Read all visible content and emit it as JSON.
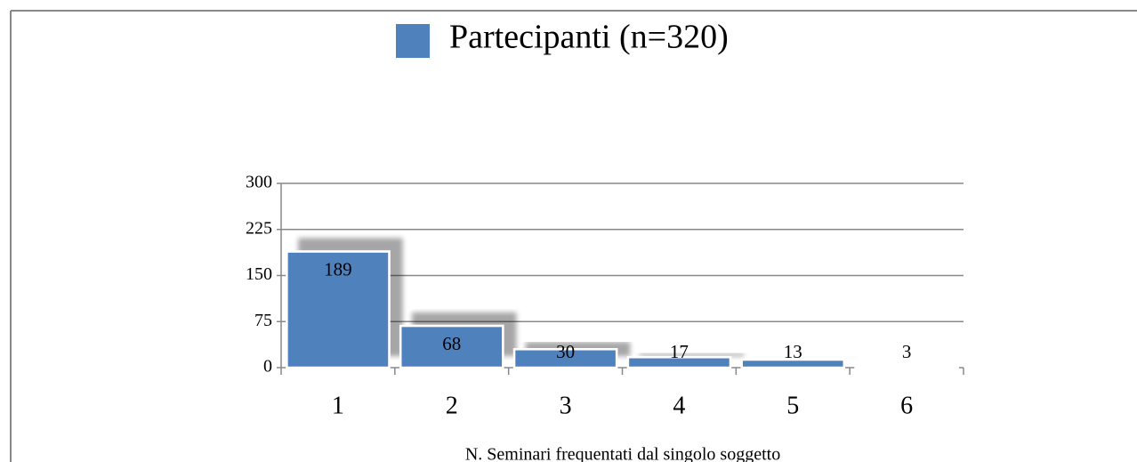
{
  "chart_data": {
    "type": "bar",
    "series": [
      {
        "name": "Partecipanti (n=320)",
        "color": "#4f81bd",
        "values": [
          189,
          68,
          30,
          17,
          13,
          3
        ]
      }
    ],
    "categories": [
      "1",
      "2",
      "3",
      "4",
      "5",
      "6"
    ],
    "xlabel": "N. Seminari frequentati dal singolo soggetto",
    "ylim": [
      0,
      300
    ],
    "yticks": [
      0,
      75,
      150,
      225,
      300
    ],
    "grid": true,
    "legend": "top"
  }
}
